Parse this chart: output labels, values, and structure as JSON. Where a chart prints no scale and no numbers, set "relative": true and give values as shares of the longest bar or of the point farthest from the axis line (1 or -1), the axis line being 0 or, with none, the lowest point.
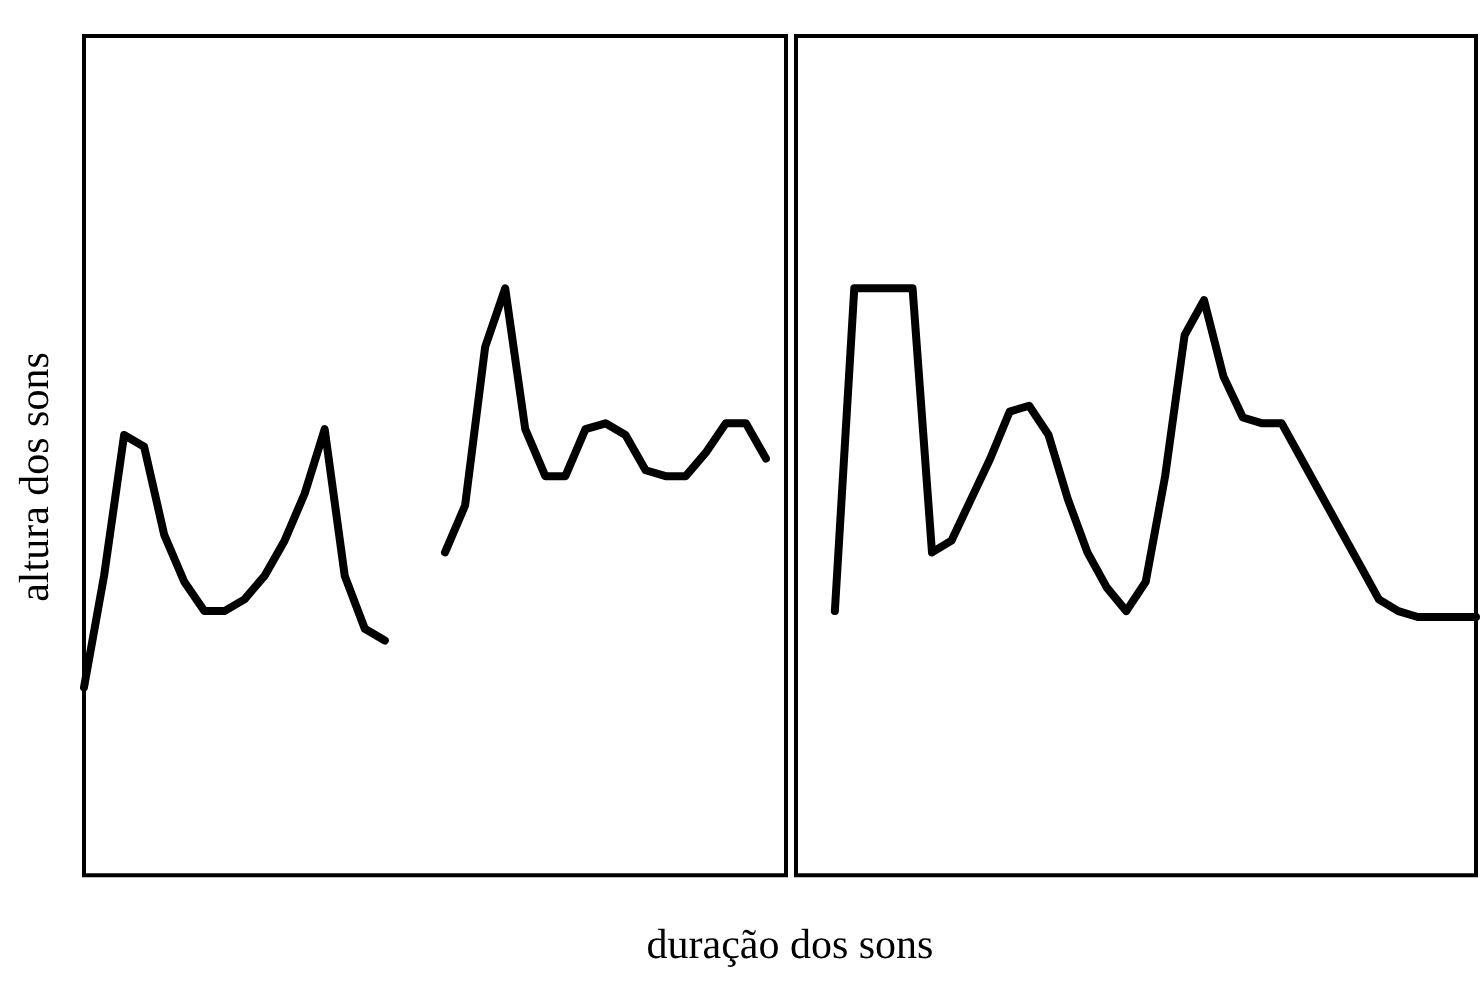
{
  "chart_data": [
    {
      "type": "line",
      "ylabel": "altura dos sons",
      "xlabel": "duração dos sons",
      "relative": true,
      "categories": [
        null,
        null,
        null,
        null,
        null,
        null,
        null,
        null,
        null,
        null,
        null,
        null,
        null,
        null,
        null,
        null,
        null,
        null,
        null,
        null,
        null,
        null,
        null,
        null,
        null,
        null,
        null,
        null,
        null,
        null,
        null,
        null,
        null,
        null,
        null,
        null
      ],
      "series": [
        {
          "color": "#000000",
          "values": [
            0.32,
            0.51,
            0.75,
            0.73,
            0.58,
            0.5,
            0.45,
            0.45,
            0.47,
            0.51,
            0.57,
            0.65,
            0.76,
            0.51,
            0.42,
            0.4,
            null,
            null,
            null,
            null,
            null,
            null,
            null,
            null,
            null,
            null,
            null,
            null,
            null,
            null,
            null,
            null,
            null,
            null,
            null,
            null
          ]
        },
        {
          "color": "#000000",
          "values": [
            null,
            null,
            null,
            null,
            null,
            null,
            null,
            null,
            null,
            null,
            null,
            null,
            null,
            null,
            null,
            null,
            null,
            null,
            0.55,
            0.63,
            0.9,
            1,
            0.76,
            0.68,
            0.68,
            0.76,
            0.77,
            0.75,
            0.69,
            0.68,
            0.68,
            0.72,
            0.77,
            0.77,
            0.71,
            null
          ]
        }
      ],
      "grid": false,
      "legend": false,
      "marker": "none",
      "line_style": "solid"
    },
    {
      "type": "line",
      "relative": true,
      "categories": [
        null,
        null,
        null,
        null,
        null,
        null,
        null,
        null,
        null,
        null,
        null,
        null,
        null,
        null,
        null,
        null,
        null,
        null,
        null,
        null,
        null,
        null,
        null,
        null,
        null,
        null,
        null,
        null,
        null,
        null,
        null,
        null,
        null,
        null,
        null,
        null
      ],
      "series": [
        {
          "color": "#000000",
          "values": [
            null,
            null,
            0.45,
            1,
            1,
            1,
            1,
            0.55,
            0.57,
            0.64,
            0.71,
            0.79,
            0.8,
            0.75,
            0.64,
            0.55,
            0.49,
            0.45,
            0.5,
            0.68,
            0.92,
            0.98,
            0.85,
            0.78,
            0.77,
            0.77,
            0.71,
            0.65,
            0.59,
            0.53,
            0.47,
            0.45,
            0.44,
            0.44,
            0.44,
            0.44
          ]
        }
      ],
      "grid": false,
      "legend": false,
      "marker": "none",
      "line_style": "solid"
    }
  ]
}
